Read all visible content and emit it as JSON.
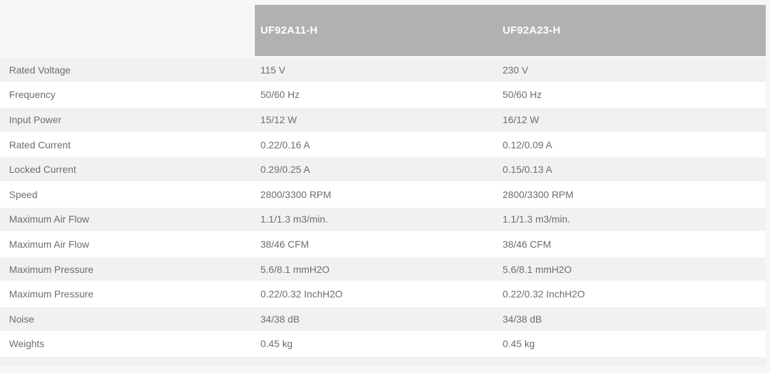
{
  "table": {
    "columns": [
      {
        "label": "UF92A11-H"
      },
      {
        "label": "UF92A23-H"
      }
    ],
    "rows": [
      {
        "label": "Rated Voltage",
        "values": [
          "115 V",
          "230 V"
        ]
      },
      {
        "label": "Frequency",
        "values": [
          "50/60 Hz",
          "50/60 Hz"
        ]
      },
      {
        "label": "Input Power",
        "values": [
          "15/12 W",
          "16/12 W"
        ]
      },
      {
        "label": "Rated Current",
        "values": [
          "0.22/0.16 A",
          "0.12/0.09 A"
        ]
      },
      {
        "label": "Locked Current",
        "values": [
          "0.29/0.25 A",
          "0.15/0.13 A"
        ]
      },
      {
        "label": "Speed",
        "values": [
          "2800/3300 RPM",
          "2800/3300 RPM"
        ]
      },
      {
        "label": "Maximum Air Flow",
        "values": [
          "1.1/1.3 m3/min.",
          "1.1/1.3 m3/min."
        ]
      },
      {
        "label": "Maximum Air Flow",
        "values": [
          "38/46 CFM",
          "38/46 CFM"
        ]
      },
      {
        "label": "Maximum Pressure",
        "values": [
          "5.6/8.1 mmH2O",
          "5.6/8.1 mmH2O"
        ]
      },
      {
        "label": "Maximum Pressure",
        "values": [
          "0.22/0.32 InchH2O",
          "0.22/0.32 InchH2O"
        ]
      },
      {
        "label": "Noise",
        "values": [
          "34/38 dB",
          "34/38 dB"
        ]
      },
      {
        "label": "Weights",
        "values": [
          "0.45 kg",
          "0.45 kg"
        ]
      }
    ]
  },
  "colors": {
    "page_background": "#f6f6f6",
    "header_background": "#b1b1b1",
    "header_text": "#ffffff",
    "row_stripe": "#f1f1f1",
    "row_plain": "#ffffff",
    "body_text": "#6d6d6d"
  }
}
